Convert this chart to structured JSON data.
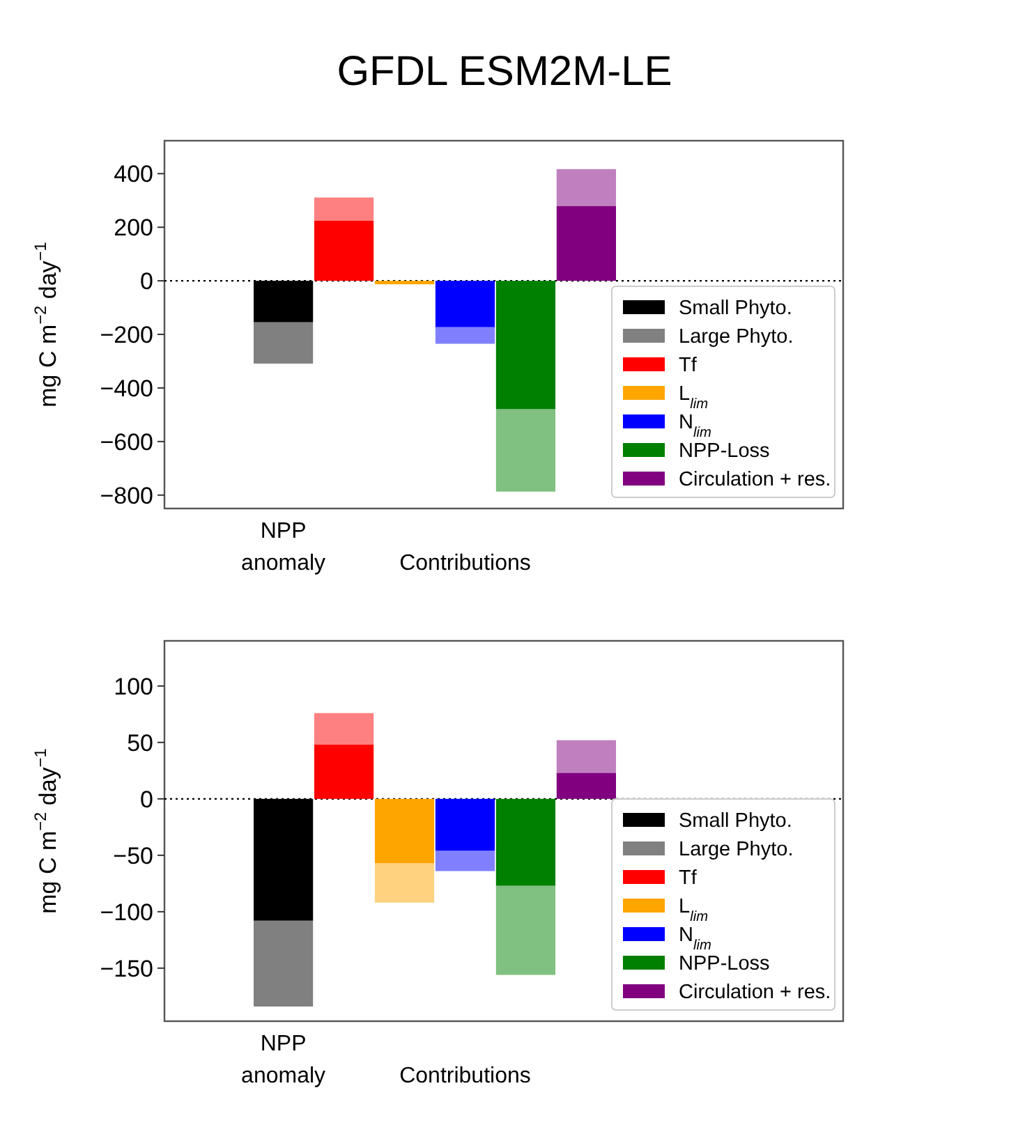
{
  "chart_data": [
    {
      "type": "bar",
      "title": "GFDL ESM2M-LE",
      "ylabel": "mg C m$^{−2}$ day$^{−1}$",
      "categories": [
        "NPP\nanomaly",
        null,
        null,
        "Contributions",
        null,
        null
      ],
      "ylim": [
        -850,
        523
      ],
      "yticks": [
        {
          "value": 400,
          "label": "400"
        },
        {
          "value": 200,
          "label": "200"
        },
        {
          "value": 0,
          "label": "0"
        },
        {
          "value": -200,
          "label": "−200"
        },
        {
          "value": -400,
          "label": "−400"
        },
        {
          "value": -600,
          "label": "−600"
        },
        {
          "value": -800,
          "label": "−800"
        }
      ],
      "legend": "bottom right",
      "ref_lines": [
        {
          "axis": "y",
          "value": 0,
          "line_style": "dotted",
          "color": "#000000"
        }
      ],
      "series": [
        {
          "name": "Small Phyto.",
          "color": "#000000",
          "values": [
            -155,
            null,
            null,
            null,
            null,
            null
          ]
        },
        {
          "name": "Large Phyto.",
          "color": "#808080",
          "colors": [
            "#808080",
            "#ff8080",
            null,
            "#8080ff",
            "#80c080",
            "#c080c0"
          ],
          "base": [
            -155,
            224,
            null,
            -173,
            -479,
            279
          ],
          "values": [
            -154,
            87,
            null,
            -62,
            -308,
            138
          ]
        },
        {
          "name": "Tf",
          "color": "#ff0000",
          "values": [
            null,
            224,
            null,
            null,
            null,
            null
          ]
        },
        {
          "name": "L$_{lim}$",
          "color": "#ffa500",
          "values": [
            null,
            null,
            -13,
            null,
            null,
            null
          ]
        },
        {
          "name": "N$_{lim}$",
          "color": "#0000ff",
          "values": [
            null,
            null,
            null,
            -173,
            null,
            null
          ]
        },
        {
          "name": "NPP-Loss",
          "color": "#008000",
          "values": [
            null,
            null,
            null,
            null,
            -479,
            null
          ]
        },
        {
          "name": "Circulation + res.",
          "color": "#800080",
          "values": [
            null,
            null,
            null,
            null,
            null,
            279
          ]
        }
      ]
    },
    {
      "type": "bar",
      "ylabel": "mg C m$^{−2}$ day$^{−1}$",
      "categories": [
        "NPP\nanomaly",
        null,
        null,
        "Contributions",
        null,
        null
      ],
      "ylim": [
        -197,
        140
      ],
      "yticks": [
        {
          "value": 100,
          "label": "100"
        },
        {
          "value": 50,
          "label": "50"
        },
        {
          "value": 0,
          "label": "0"
        },
        {
          "value": -50,
          "label": "−50"
        },
        {
          "value": -100,
          "label": "−100"
        },
        {
          "value": -150,
          "label": "−150"
        }
      ],
      "legend": "bottom right",
      "ref_lines": [
        {
          "axis": "y",
          "value": 0,
          "line_style": "dotted",
          "color": "#000000"
        }
      ],
      "series": [
        {
          "name": "Small Phyto.",
          "color": "#000000",
          "values": [
            -108,
            null,
            null,
            null,
            null,
            null
          ]
        },
        {
          "name": "Large Phyto.",
          "color": "#808080",
          "colors": [
            "#808080",
            "#ff8080",
            "#ffd280",
            "#8080ff",
            "#80c080",
            "#c080c0"
          ],
          "base": [
            -108,
            48,
            -57,
            -46,
            -77,
            23
          ],
          "values": [
            -76,
            28,
            -35,
            -18,
            -79,
            29
          ]
        },
        {
          "name": "Tf",
          "color": "#ff0000",
          "values": [
            null,
            48,
            null,
            null,
            null,
            null
          ]
        },
        {
          "name": "L$_{lim}$",
          "color": "#ffa500",
          "values": [
            null,
            null,
            -57,
            null,
            null,
            null
          ]
        },
        {
          "name": "N$_{lim}$",
          "color": "#0000ff",
          "values": [
            null,
            null,
            null,
            -46,
            null,
            null
          ]
        },
        {
          "name": "NPP-Loss",
          "color": "#008000",
          "values": [
            null,
            null,
            null,
            null,
            -77,
            null
          ]
        },
        {
          "name": "Circulation + res.",
          "color": "#800080",
          "values": [
            null,
            null,
            null,
            null,
            null,
            23
          ]
        }
      ]
    }
  ]
}
